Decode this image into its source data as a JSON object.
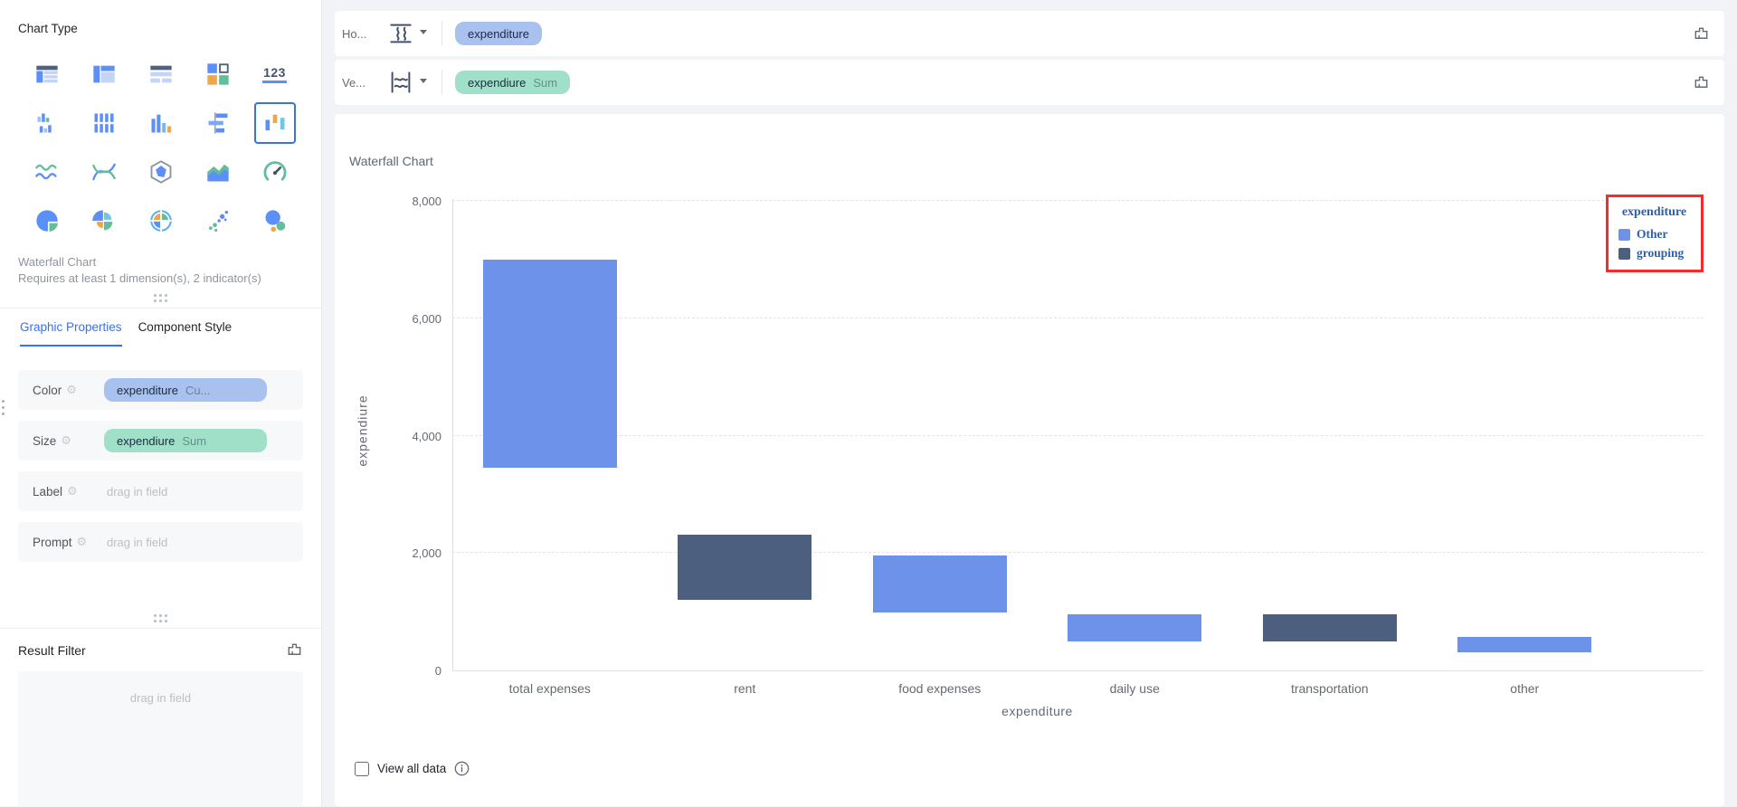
{
  "sidebar": {
    "chart_type_label": "Chart Type",
    "selected_chart": {
      "name": "Waterfall Chart",
      "requirement": "Requires at least 1 dimension(s), 2 indicator(s)"
    },
    "indicator_icon_text": "123",
    "tabs": [
      {
        "label": "Graphic Properties",
        "active": true
      },
      {
        "label": "Component Style",
        "active": false
      }
    ],
    "properties": [
      {
        "label": "Color",
        "field": "expenditure",
        "agg": "Cu...",
        "pill_color": "#a9c1ee"
      },
      {
        "label": "Size",
        "field": "expendiure",
        "agg": "Sum",
        "pill_color": "#a0e0c8"
      },
      {
        "label": "Label",
        "placeholder": "drag in field"
      },
      {
        "label": "Prompt",
        "placeholder": "drag in field"
      }
    ],
    "result_filter": {
      "label": "Result Filter",
      "placeholder": "drag in field"
    }
  },
  "shelves": [
    {
      "label": "Ho...",
      "pill": {
        "field": "expenditure",
        "agg": "",
        "color": "#a9c1ee"
      }
    },
    {
      "label": "Ve...",
      "pill": {
        "field": "expendiure",
        "agg": "Sum",
        "color": "#a0e0c8"
      }
    }
  ],
  "footer": {
    "view_all_label": "View all data"
  },
  "icons": {
    "clear": "brush-icon",
    "settings": "gear-icon",
    "info": "info-icon",
    "dropdown": "caret-down-icon",
    "drag_handle": "six-dot-handle"
  },
  "chart_data": {
    "type": "bar",
    "subtype": "waterfall",
    "title": "Waterfall Chart",
    "xlabel": "expenditure",
    "ylabel": "expendiure",
    "categories": [
      "total expenses",
      "rent",
      "food expenses",
      "daily use",
      "transportation",
      "other"
    ],
    "bars": [
      {
        "category": "total expenses",
        "from": 3450,
        "to": 7000,
        "group": "Other"
      },
      {
        "category": "rent",
        "from": 1200,
        "to": 2310,
        "group": "grouping"
      },
      {
        "category": "food expenses",
        "from": 985,
        "to": 1965,
        "group": "Other"
      },
      {
        "category": "daily use",
        "from": 500,
        "to": 960,
        "group": "Other"
      },
      {
        "category": "transportation",
        "from": 490,
        "to": 960,
        "group": "grouping"
      },
      {
        "category": "other",
        "from": 305,
        "to": 575,
        "group": "Other"
      }
    ],
    "yticks": [
      0,
      2000,
      4000,
      6000,
      8000
    ],
    "ylim": [
      0,
      8200
    ],
    "grid": "horizontal-dashed",
    "series_colors": {
      "Other": "#6d92ea",
      "grouping": "#4d5f7e"
    },
    "legend": {
      "position": "top-right",
      "title": "expenditure",
      "items": [
        {
          "label": "Other",
          "color": "#6d92ea"
        },
        {
          "label": "grouping",
          "color": "#4d5f7e"
        }
      ],
      "text_color": "#2d5fae",
      "highlight_box_color": "#fa2a2a"
    }
  }
}
